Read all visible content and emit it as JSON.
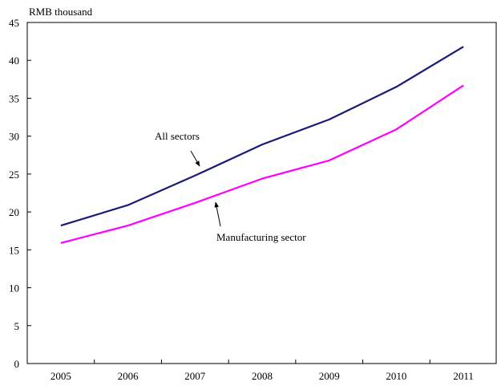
{
  "chart_data": {
    "type": "line",
    "unit_label": "RMB thousand",
    "x": [
      "2005",
      "2006",
      "2007",
      "2008",
      "2009",
      "2010",
      "2011"
    ],
    "ylim": [
      0,
      45
    ],
    "yticks": [
      0,
      5,
      10,
      15,
      20,
      25,
      30,
      35,
      40,
      45
    ],
    "grid": false,
    "legend": "none",
    "series": [
      {
        "name": "All sectors",
        "color": "#1a1a7a",
        "values": [
          18.2,
          20.9,
          24.8,
          28.9,
          32.2,
          36.5,
          41.8
        ]
      },
      {
        "name": "Manufacturing sector",
        "color": "#ff00ff",
        "values": [
          15.9,
          18.2,
          21.2,
          24.4,
          26.8,
          30.9,
          36.7
        ]
      }
    ],
    "annotations": [
      {
        "text": "All sectors",
        "series": 0
      },
      {
        "text": "Manufacturing sector",
        "series": 1
      }
    ]
  }
}
